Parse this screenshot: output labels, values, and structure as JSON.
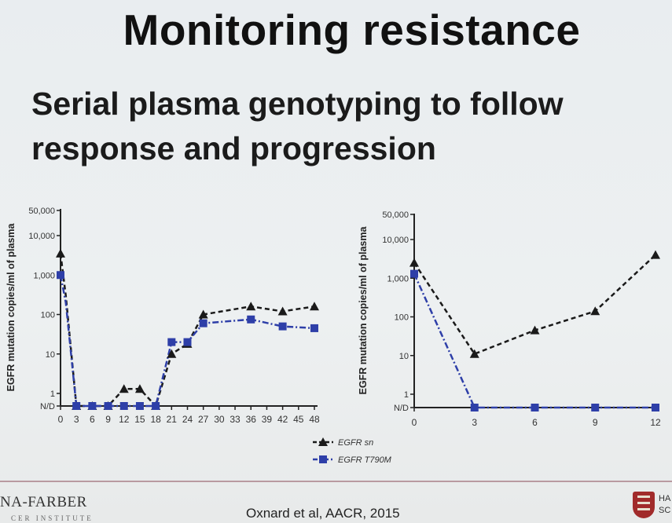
{
  "slide": {
    "title": "Monitoring resistance",
    "subtitle_line1": "Serial plasma genotyping to follow",
    "subtitle_line2": "response and progression",
    "footer": {
      "institution_name": "NA-FARBER",
      "institution_sub": "CER INSTITUTE",
      "citation": "Oxnard et al, AACR, 2015",
      "right_logo_text_1": "HA",
      "right_logo_text_2": "SC"
    },
    "legend": [
      {
        "label": "EGFR sn",
        "color": "#1a1a1a",
        "marker": "triangle"
      },
      {
        "label": "EGFR T790M",
        "color": "#2e3fa8",
        "marker": "square"
      }
    ]
  },
  "chart_data": [
    {
      "type": "line",
      "ylabel": "EGFR mutation  copies/ml of plasma",
      "yscale": "log",
      "ytick_labels": [
        "N/D",
        "1",
        "10",
        "100",
        "1,000",
        "10,000",
        "50,000"
      ],
      "x_ticks": [
        "0",
        "3",
        "6",
        "9",
        "12",
        "15",
        "18",
        "21",
        "24",
        "27",
        "30",
        "33",
        "36",
        "39",
        "42",
        "45",
        "48"
      ],
      "series": [
        {
          "name": "EGFR sn",
          "color": "#1a1a1a",
          "marker": "triangle",
          "dash": "dashed",
          "points": [
            [
              0,
              3500
            ],
            [
              1,
              300
            ],
            [
              3,
              "N/D"
            ],
            [
              6,
              "N/D"
            ],
            [
              9,
              "N/D"
            ],
            [
              12,
              1.3
            ],
            [
              15,
              1.3
            ],
            [
              18,
              "N/D"
            ],
            [
              21,
              10
            ],
            [
              24,
              18
            ],
            [
              27,
              100
            ],
            [
              36,
              160
            ],
            [
              42,
              120
            ],
            [
              48,
              160
            ]
          ]
        },
        {
          "name": "EGFR T790M",
          "color": "#2e3fa8",
          "marker": "square",
          "dash": "dashdot",
          "points": [
            [
              0,
              1000
            ],
            [
              1,
              200
            ],
            [
              3,
              "N/D"
            ],
            [
              6,
              "N/D"
            ],
            [
              9,
              "N/D"
            ],
            [
              12,
              "N/D"
            ],
            [
              15,
              "N/D"
            ],
            [
              18,
              "N/D"
            ],
            [
              21,
              20
            ],
            [
              24,
              20
            ],
            [
              27,
              60
            ],
            [
              36,
              75
            ],
            [
              42,
              50
            ],
            [
              48,
              45
            ]
          ]
        }
      ]
    },
    {
      "type": "line",
      "ylabel": "EGFR mutation copies/ml of plasma",
      "yscale": "log",
      "ytick_labels": [
        "N/D",
        "1",
        "10",
        "100",
        "1,000",
        "10,000",
        "50,000"
      ],
      "x_ticks": [
        "0",
        "3",
        "6",
        "9",
        "12"
      ],
      "series": [
        {
          "name": "EGFR sn",
          "color": "#1a1a1a",
          "marker": "triangle",
          "dash": "dashed",
          "points": [
            [
              0,
              2500
            ],
            [
              3,
              11
            ],
            [
              6,
              45
            ],
            [
              9,
              140
            ],
            [
              12,
              4000
            ]
          ]
        },
        {
          "name": "EGFR T790M",
          "color": "#2e3fa8",
          "marker": "square",
          "dash": "dashdot",
          "points": [
            [
              0,
              1300
            ],
            [
              3,
              "N/D"
            ],
            [
              6,
              "N/D"
            ],
            [
              9,
              "N/D"
            ],
            [
              12,
              "N/D"
            ]
          ]
        }
      ]
    }
  ]
}
